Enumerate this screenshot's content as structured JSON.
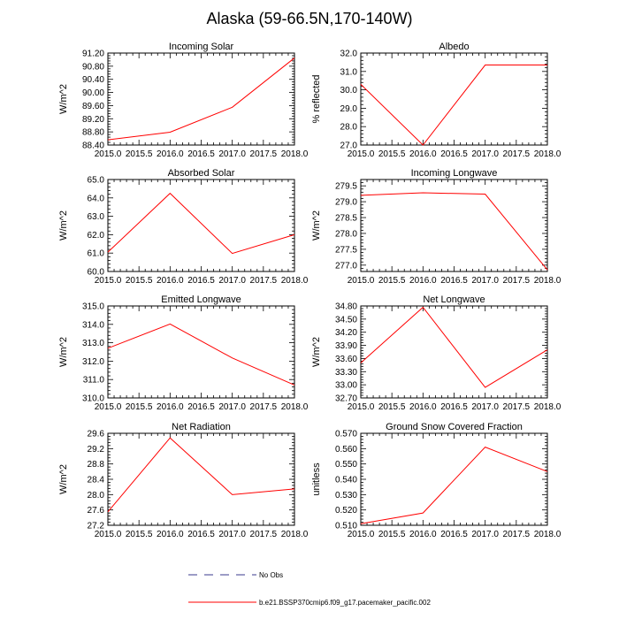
{
  "figure_title": "Alaska (59-66.5N,170-140W)",
  "legend": {
    "obs_label": "No Obs",
    "model_label": "b.e21.BSSP370cmip6.f09_g17.pacemaker_pacific.002",
    "obs_color": "#3a3a8c",
    "model_color": "#ff0000"
  },
  "chart_data": [
    {
      "type": "line",
      "title": "Incoming Solar",
      "ylabel": "W/m^2",
      "xlabel": "",
      "x": [
        2015.0,
        2016.0,
        2017.0,
        2018.0
      ],
      "series": [
        {
          "name": "b.e21.BSSP370cmip6.f09_g17.pacemaker_pacific.002",
          "values": [
            88.56,
            88.79,
            89.55,
            91.05
          ]
        }
      ],
      "xlim": [
        2015.0,
        2018.0
      ],
      "ylim": [
        88.4,
        91.2
      ],
      "xticks": [
        "2015.0",
        "2015.5",
        "2016.0",
        "2016.5",
        "2017.0",
        "2017.5",
        "2018.0"
      ],
      "yticks": [
        "88.40",
        "88.80",
        "89.20",
        "89.60",
        "90.00",
        "90.40",
        "90.80",
        "91.20"
      ],
      "ytick_values": [
        88.4,
        88.8,
        89.2,
        89.6,
        90.0,
        90.4,
        90.8,
        91.2
      ]
    },
    {
      "type": "line",
      "title": "Albedo",
      "ylabel": "% reflected",
      "xlabel": "",
      "x": [
        2015.0,
        2016.0,
        2017.0,
        2018.0
      ],
      "series": [
        {
          "name": "b.e21.BSSP370cmip6.f09_g17.pacemaker_pacific.002",
          "values": [
            30.3,
            27.0,
            31.35,
            31.35
          ]
        }
      ],
      "xlim": [
        2015.0,
        2018.0
      ],
      "ylim": [
        27.0,
        32.0
      ],
      "xticks": [
        "2015.0",
        "2015.5",
        "2016.0",
        "2016.5",
        "2017.0",
        "2017.5",
        "2018.0"
      ],
      "yticks": [
        "27.0",
        "28.0",
        "29.0",
        "30.0",
        "31.0",
        "32.0"
      ],
      "ytick_values": [
        27.0,
        28.0,
        29.0,
        30.0,
        31.0,
        32.0
      ]
    },
    {
      "type": "line",
      "title": "Absorbed Solar",
      "ylabel": "W/m^2",
      "xlabel": "",
      "x": [
        2015.0,
        2016.0,
        2017.0,
        2018.0
      ],
      "series": [
        {
          "name": "b.e21.BSSP370cmip6.f09_g17.pacemaker_pacific.002",
          "values": [
            61.05,
            64.25,
            60.98,
            62.0
          ]
        }
      ],
      "xlim": [
        2015.0,
        2018.0
      ],
      "ylim": [
        60.0,
        65.0
      ],
      "xticks": [
        "2015.0",
        "2015.5",
        "2016.0",
        "2016.5",
        "2017.0",
        "2017.5",
        "2018.0"
      ],
      "yticks": [
        "60.0",
        "61.0",
        "62.0",
        "63.0",
        "64.0",
        "65.0"
      ],
      "ytick_values": [
        60.0,
        61.0,
        62.0,
        63.0,
        64.0,
        65.0
      ]
    },
    {
      "type": "line",
      "title": "Incoming Longwave",
      "ylabel": "W/m^2",
      "xlabel": "",
      "x": [
        2015.0,
        2016.0,
        2017.0,
        2018.0
      ],
      "series": [
        {
          "name": "b.e21.BSSP370cmip6.f09_g17.pacemaker_pacific.002",
          "values": [
            279.2,
            279.28,
            279.24,
            276.85
          ]
        }
      ],
      "xlim": [
        2015.0,
        2018.0
      ],
      "ylim": [
        276.8,
        279.7
      ],
      "xticks": [
        "2015.0",
        "2015.5",
        "2016.0",
        "2016.5",
        "2017.0",
        "2017.5",
        "2018.0"
      ],
      "yticks": [
        "277.0",
        "277.5",
        "278.0",
        "278.5",
        "279.0",
        "279.5"
      ],
      "ytick_values": [
        277.0,
        277.5,
        278.0,
        278.5,
        279.0,
        279.5
      ]
    },
    {
      "type": "line",
      "title": "Emitted Longwave",
      "ylabel": "W/m^2",
      "xlabel": "",
      "x": [
        2015.0,
        2016.0,
        2017.0,
        2018.0
      ],
      "series": [
        {
          "name": "b.e21.BSSP370cmip6.f09_g17.pacemaker_pacific.002",
          "values": [
            312.7,
            314.02,
            312.17,
            310.7
          ]
        }
      ],
      "xlim": [
        2015.0,
        2018.0
      ],
      "ylim": [
        310.0,
        315.0
      ],
      "xticks": [
        "2015.0",
        "2015.5",
        "2016.0",
        "2016.5",
        "2017.0",
        "2017.5",
        "2018.0"
      ],
      "yticks": [
        "310.0",
        "311.0",
        "312.0",
        "313.0",
        "314.0",
        "315.0"
      ],
      "ytick_values": [
        310.0,
        311.0,
        312.0,
        313.0,
        314.0,
        315.0
      ]
    },
    {
      "type": "line",
      "title": "Net Longwave",
      "ylabel": "W/m^2",
      "xlabel": "",
      "x": [
        2015.0,
        2016.0,
        2017.0,
        2018.0
      ],
      "series": [
        {
          "name": "b.e21.BSSP370cmip6.f09_g17.pacemaker_pacific.002",
          "values": [
            33.5,
            34.77,
            32.94,
            33.8
          ]
        }
      ],
      "xlim": [
        2015.0,
        2018.0
      ],
      "ylim": [
        32.7,
        34.8
      ],
      "xticks": [
        "2015.0",
        "2015.5",
        "2016.0",
        "2016.5",
        "2017.0",
        "2017.5",
        "2018.0"
      ],
      "yticks": [
        "32.70",
        "33.00",
        "33.30",
        "33.60",
        "33.90",
        "34.20",
        "34.50",
        "34.80"
      ],
      "ytick_values": [
        32.7,
        33.0,
        33.3,
        33.6,
        33.9,
        34.2,
        34.5,
        34.8
      ]
    },
    {
      "type": "line",
      "title": "Net Radiation",
      "ylabel": "W/m^2",
      "xlabel": "",
      "x": [
        2015.0,
        2016.0,
        2017.0,
        2018.0
      ],
      "series": [
        {
          "name": "b.e21.BSSP370cmip6.f09_g17.pacemaker_pacific.002",
          "values": [
            27.55,
            29.48,
            28.0,
            28.15
          ]
        }
      ],
      "xlim": [
        2015.0,
        2018.0
      ],
      "ylim": [
        27.2,
        29.6
      ],
      "xticks": [
        "2015.0",
        "2015.5",
        "2016.0",
        "2016.5",
        "2017.0",
        "2017.5",
        "2018.0"
      ],
      "yticks": [
        "27.2",
        "27.6",
        "28.0",
        "28.4",
        "28.8",
        "29.2",
        "29.6"
      ],
      "ytick_values": [
        27.2,
        27.6,
        28.0,
        28.4,
        28.8,
        29.2,
        29.6
      ]
    },
    {
      "type": "line",
      "title": "Ground Snow Covered Fraction",
      "ylabel": "unitless",
      "xlabel": "",
      "x": [
        2015.0,
        2016.0,
        2017.0,
        2018.0
      ],
      "series": [
        {
          "name": "b.e21.BSSP370cmip6.f09_g17.pacemaker_pacific.002",
          "values": [
            0.511,
            0.518,
            0.561,
            0.545
          ]
        }
      ],
      "xlim": [
        2015.0,
        2018.0
      ],
      "ylim": [
        0.51,
        0.57
      ],
      "xticks": [
        "2015.0",
        "2015.5",
        "2016.0",
        "2016.5",
        "2017.0",
        "2017.5",
        "2018.0"
      ],
      "yticks": [
        "0.510",
        "0.520",
        "0.530",
        "0.540",
        "0.550",
        "0.560",
        "0.570"
      ],
      "ytick_values": [
        0.51,
        0.52,
        0.53,
        0.54,
        0.55,
        0.56,
        0.57
      ]
    }
  ]
}
